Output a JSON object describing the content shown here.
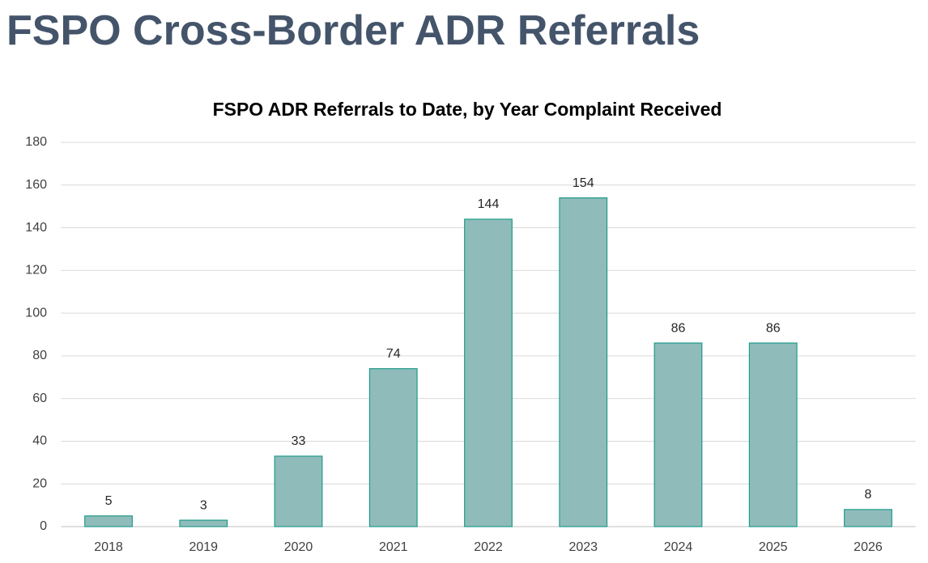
{
  "slide_title": "FSPO Cross-Border ADR Referrals",
  "chart_data": {
    "type": "bar",
    "title": "FSPO ADR Referrals to Date, by Year Complaint Received",
    "categories": [
      "2018",
      "2019",
      "2020",
      "2021",
      "2022",
      "2023",
      "2024",
      "2025",
      "2026"
    ],
    "values": [
      5,
      3,
      33,
      74,
      144,
      154,
      86,
      86,
      8
    ],
    "color": "#8fbcbb",
    "edge_color": "#1e9b8a",
    "ylim": [
      0,
      180
    ],
    "yticks": [
      0,
      20,
      40,
      60,
      80,
      100,
      120,
      140,
      160,
      180
    ],
    "grid": true,
    "data_labels": true
  }
}
